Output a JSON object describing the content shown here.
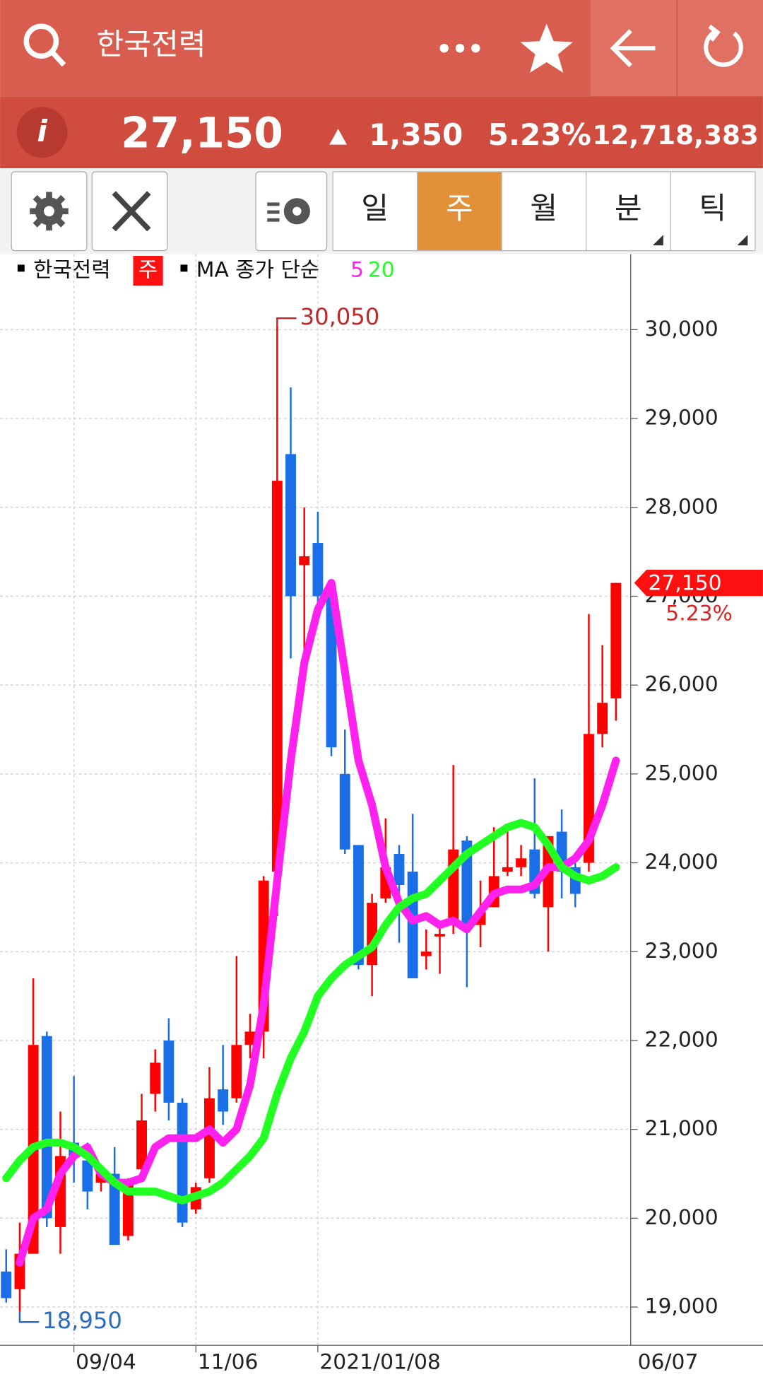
{
  "header": {
    "search": "한국전력"
  },
  "quote": {
    "price": "27,150",
    "change": "1,350",
    "change_pct": "5.23%",
    "volume": "12,718,383"
  },
  "tabs": [
    "일",
    "주",
    "월",
    "분",
    "틱"
  ],
  "active_tab": 1,
  "chart_data": {
    "type": "candlestick",
    "legend": {
      "name": "한국전력",
      "period": "주",
      "ma_label": "MA 종가 단순"
    },
    "up_color": "#ff0000",
    "down_color": "#1a6ee8",
    "categories": [
      null,
      null,
      null,
      null,
      null,
      "09/04",
      null,
      null,
      null,
      null,
      null,
      null,
      null,
      null,
      "11/06",
      null,
      null,
      null,
      null,
      null,
      null,
      null,
      null,
      "2021/01/08",
      null,
      null,
      null,
      null,
      null,
      null,
      null,
      null,
      null,
      null,
      null,
      null,
      null,
      null,
      null,
      null,
      null,
      null,
      null,
      null,
      null,
      null
    ],
    "last_date": "06/07",
    "open": [
      19400,
      19200,
      19600,
      22050,
      19900,
      20850,
      20650,
      20400,
      20500,
      19800,
      20550,
      21400,
      22000,
      21300,
      20100,
      20450,
      21450,
      21350,
      21950,
      22100,
      23900,
      28600,
      27350,
      27600,
      27000,
      25000,
      24200,
      22850,
      23600,
      24100,
      23900,
      22950,
      23200,
      23300,
      24250,
      23300,
      23500,
      23900,
      23950,
      24150,
      23500,
      24350,
      23950,
      24000,
      25450,
      25850
    ],
    "close": [
      19100,
      19600,
      21950,
      20000,
      20700,
      20700,
      20300,
      20500,
      19700,
      20400,
      21100,
      21750,
      21300,
      19950,
      20350,
      21350,
      21200,
      21950,
      22100,
      23800,
      28300,
      27000,
      27450,
      27000,
      25300,
      24150,
      22850,
      23550,
      23950,
      23750,
      22700,
      23000,
      23200,
      24150,
      23250,
      23450,
      23850,
      23950,
      24050,
      23650,
      24300,
      23900,
      23650,
      25450,
      25800,
      27150
    ],
    "high": [
      19650,
      19950,
      22700,
      22100,
      21200,
      21600,
      20850,
      20600,
      20800,
      20450,
      21400,
      21900,
      22250,
      21350,
      20400,
      21700,
      21950,
      22950,
      22300,
      23850,
      30050,
      29350,
      28000,
      27950,
      27150,
      25500,
      24200,
      23650,
      24500,
      24200,
      24550,
      23250,
      23300,
      25100,
      24300,
      23800,
      24400,
      24400,
      24200,
      24950,
      24300,
      24600,
      24000,
      26800,
      26450,
      27150
    ],
    "low": [
      19050,
      18950,
      19600,
      19900,
      19600,
      20400,
      20100,
      20300,
      19700,
      19750,
      20450,
      21200,
      21100,
      19900,
      20050,
      20400,
      21050,
      21300,
      21800,
      21800,
      23400,
      26300,
      26200,
      26800,
      25200,
      24100,
      22800,
      22500,
      23550,
      23100,
      22700,
      22800,
      22750,
      23200,
      22600,
      23050,
      23500,
      23850,
      23850,
      23600,
      23000,
      23600,
      23500,
      23900,
      25300,
      25600
    ],
    "series": [
      {
        "name": "5",
        "color": "#ff22ee",
        "values": [
          null,
          19500,
          20000,
          20100,
          20500,
          20700,
          20800,
          20500,
          20400,
          20400,
          20450,
          20800,
          20900,
          20900,
          20900,
          21000,
          20850,
          21000,
          21500,
          22400,
          23800,
          25150,
          26250,
          26850,
          27150,
          26150,
          25150,
          24650,
          23950,
          23550,
          23350,
          23400,
          23300,
          23350,
          23250,
          23450,
          23650,
          23700,
          23700,
          23750,
          23950,
          23950,
          24050,
          24250,
          24650,
          25150
        ]
      },
      {
        "name": "20",
        "color": "#22ff22",
        "values": [
          20450,
          20650,
          20800,
          20850,
          20850,
          20800,
          20700,
          20550,
          20400,
          20300,
          20300,
          20300,
          20250,
          20200,
          20250,
          20300,
          20400,
          20550,
          20700,
          20900,
          21400,
          21800,
          22100,
          22500,
          22700,
          22850,
          22950,
          23050,
          23300,
          23500,
          23600,
          23650,
          23800,
          23950,
          24100,
          24200,
          24300,
          24400,
          24450,
          24400,
          24200,
          23950,
          23850,
          23800,
          23850,
          23950
        ]
      }
    ],
    "annotations": [
      {
        "value": 30050,
        "label": "30,050",
        "kind": "high"
      },
      {
        "value": 18950,
        "label": "18,950",
        "kind": "low"
      }
    ],
    "current": {
      "value": 27150,
      "label": "27,150",
      "change": "5.23%"
    },
    "ylim": [
      18570,
      30850
    ],
    "yticks": [
      {
        "value": 19000,
        "label": "19,000"
      },
      {
        "value": 20000,
        "label": "20,000"
      },
      {
        "value": 21000,
        "label": "21,000"
      },
      {
        "value": 22000,
        "label": "22,000"
      },
      {
        "value": 23000,
        "label": "23,000"
      },
      {
        "value": 24000,
        "label": "24,000"
      },
      {
        "value": 25000,
        "label": "25,000"
      },
      {
        "value": 26000,
        "label": "26,000"
      },
      {
        "value": 27000,
        "label": "27,000"
      },
      {
        "value": 28000,
        "label": "28,000"
      },
      {
        "value": 29000,
        "label": "29,000"
      },
      {
        "value": 30000,
        "label": "30,000"
      }
    ],
    "grid": true
  }
}
